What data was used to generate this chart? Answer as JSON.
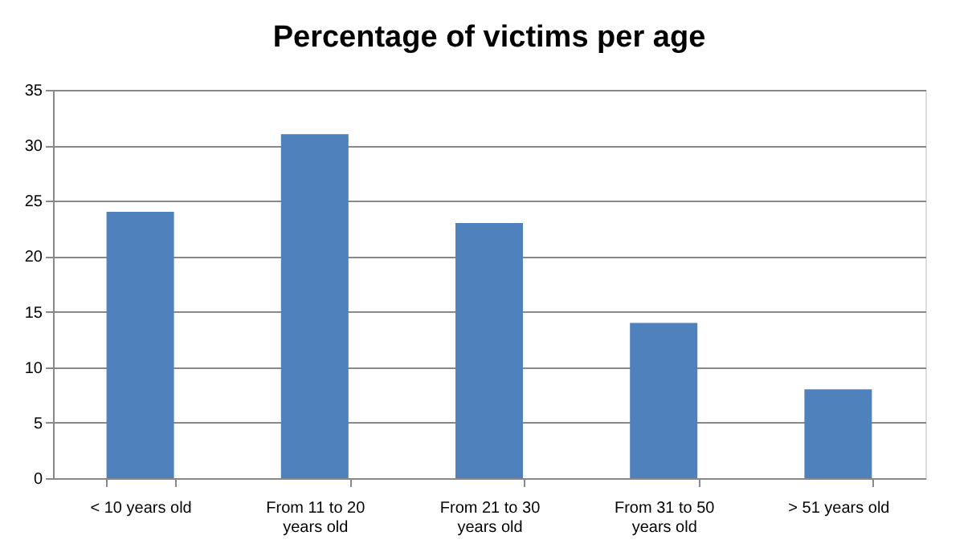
{
  "chart_data": {
    "type": "bar",
    "title": "Percentage of victims per age",
    "categories": [
      "< 10 years old",
      "From 11 to 20 years old",
      "From 21 to 30 years old",
      "From 31 to 50 years old",
      "> 51 years old"
    ],
    "values": [
      24,
      31,
      23,
      14,
      8
    ],
    "color": "#4f81bd",
    "ylim": [
      0,
      35
    ],
    "yticks": [
      0,
      5,
      10,
      15,
      20,
      25,
      30,
      35
    ],
    "grid": "y"
  }
}
